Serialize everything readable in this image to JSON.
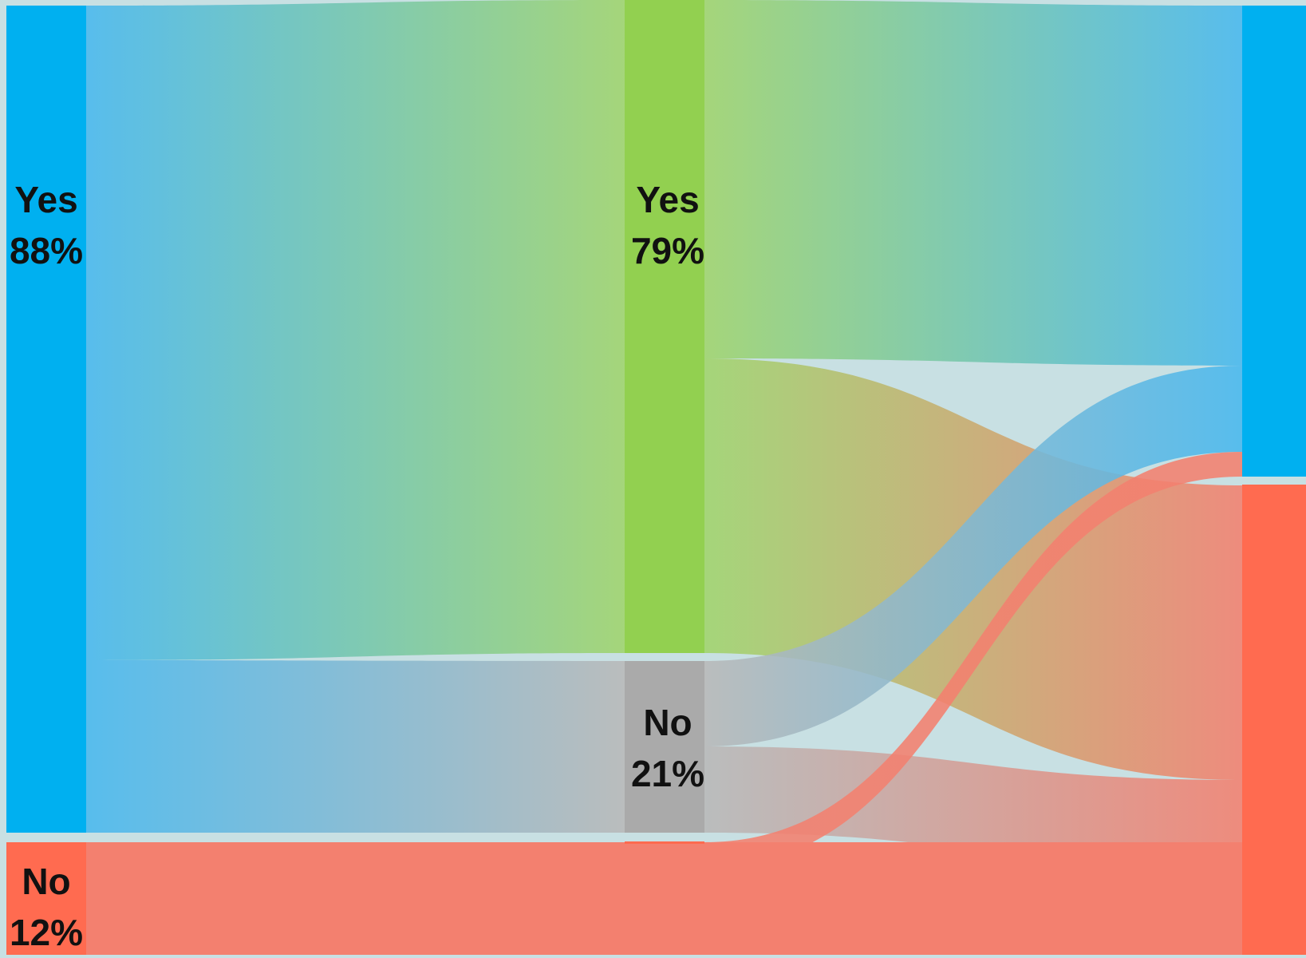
{
  "colors": {
    "background": "#c8e0e3",
    "blue": "#00b0f0",
    "blue_flow": "#48b8ee",
    "green": "#92d050",
    "green_flow": "#a0d46c",
    "gray": "#aaaaaa",
    "gray_flow": "#b8b8b8",
    "red": "#ff6b50",
    "red_flow": "#f3806f",
    "amber_flow": "#d79a60"
  },
  "stages": [
    {
      "nodes": [
        {
          "id": "s1-yes",
          "label": "Yes",
          "pct": "88%",
          "color_key": "blue"
        },
        {
          "id": "s1-no",
          "label": "No",
          "pct": "12%",
          "color_key": "red"
        }
      ]
    },
    {
      "nodes": [
        {
          "id": "s2-yes",
          "label": "Yes",
          "pct": "79%",
          "color_key": "green"
        },
        {
          "id": "s2-no",
          "label": "No",
          "pct": "21%",
          "color_key": "gray"
        }
      ]
    },
    {
      "nodes": [
        {
          "id": "s3-top",
          "label": "",
          "pct": "",
          "color_key": "blue"
        },
        {
          "id": "s3-bottom",
          "label": "",
          "pct": "",
          "color_key": "red"
        }
      ]
    }
  ],
  "flows": [
    {
      "from": "s1-yes",
      "to": "s2-yes",
      "value": 69,
      "from_color": "blue_flow",
      "to_color": "green_flow"
    },
    {
      "from": "s1-yes",
      "to": "s2-no",
      "value": 18,
      "from_color": "blue_flow",
      "to_color": "gray_flow"
    },
    {
      "from": "s1-no",
      "to": "s2-no",
      "value": 1,
      "from_color": "red_flow",
      "to_color": "red_flow"
    },
    {
      "from": "s1-no",
      "to": "s3-bottom",
      "value": 12,
      "from_color": "red_flow",
      "to_color": "red_flow"
    },
    {
      "from": "s2-yes",
      "to": "s3-top",
      "value": 38,
      "from_color": "green_flow",
      "to_color": "blue_flow"
    },
    {
      "from": "s2-yes",
      "to": "s3-bottom",
      "value": 31,
      "from_color": "green_flow",
      "to_color": "red_flow"
    },
    {
      "from": "s2-no",
      "to": "s3-top",
      "value": 9,
      "from_color": "gray_flow",
      "to_color": "blue_flow"
    },
    {
      "from": "s2-no",
      "to": "s3-bottom",
      "value": 9,
      "from_color": "gray_flow",
      "to_color": "red_flow"
    },
    {
      "from": "s2-no",
      "to": "s3-top",
      "value": 3,
      "from_color": "red_flow",
      "to_color": "red_flow"
    }
  ]
}
